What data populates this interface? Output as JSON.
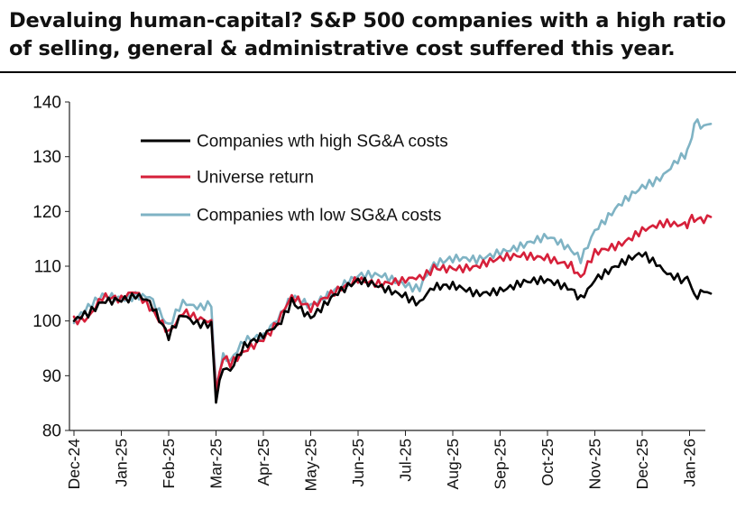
{
  "title_line1": "Devaluing human-capital? S&P 500 companies with a high ratio",
  "title_line2": "of selling, general & administrative cost suffered this year.",
  "chart_data": {
    "type": "line",
    "title": "Devaluing human-capital? S&P 500 companies with a high ratio of selling, general & administrative cost suffered this year.",
    "xlabel": "",
    "ylabel": "",
    "ylim": [
      80,
      140
    ],
    "yticks": [
      80,
      90,
      100,
      110,
      120,
      130,
      140
    ],
    "grid": false,
    "legend_position": "top-left",
    "x_tick_labels": [
      "Dec-24",
      "Jan-25",
      "Feb-25",
      "Mar-25",
      "Apr-25",
      "May-25",
      "Jun-25",
      "Jul-25",
      "Aug-25",
      "Sep-25",
      "Oct-25",
      "Nov-25",
      "Dec-25",
      "Jan-26"
    ],
    "x": [
      0,
      0.3,
      0.6,
      1.0,
      1.3,
      1.6,
      2.0,
      2.3,
      2.6,
      2.9,
      3.0,
      3.15,
      3.3,
      3.6,
      4.0,
      4.3,
      4.6,
      5.0,
      5.5,
      6.0,
      6.5,
      7.0,
      7.3,
      7.6,
      8.0,
      8.5,
      9.0,
      9.5,
      10.0,
      10.5,
      10.7,
      11.0,
      11.5,
      12.0,
      12.3,
      12.6,
      12.9,
      13.0,
      13.1,
      13.3,
      13.45
    ],
    "series": [
      {
        "name": "Companies wth high SG&A costs",
        "color": "#000000",
        "values": [
          100,
          101,
          104,
          104,
          105,
          103,
          97,
          101,
          100,
          99,
          86,
          92,
          91,
          95,
          97,
          99,
          104,
          101,
          105,
          107,
          106,
          105,
          103,
          106,
          106,
          105,
          106,
          107,
          107,
          106,
          104,
          108,
          110,
          112,
          111,
          108,
          107,
          108,
          104,
          105,
          105
        ]
      },
      {
        "name": "Universe return",
        "color": "#d6203a",
        "values": [
          100,
          101,
          104,
          104,
          105,
          103,
          98,
          102,
          100,
          100,
          87,
          93,
          92,
          95,
          97,
          100,
          104,
          102,
          105,
          108,
          107,
          107,
          108,
          110,
          110,
          110,
          111,
          112,
          112,
          110,
          108,
          112,
          114,
          117,
          117,
          118,
          118,
          118,
          119,
          119,
          119
        ]
      },
      {
        "name": "Companies wth low SG&A costs",
        "color": "#7fb3c4",
        "values": [
          100,
          102,
          105,
          104,
          105,
          104,
          99,
          103,
          103,
          103,
          88,
          94,
          93,
          96,
          97,
          100,
          105,
          103,
          106,
          108,
          108,
          107,
          106,
          110,
          111,
          111,
          113,
          114,
          115,
          113,
          111,
          117,
          121,
          124,
          126,
          128,
          130,
          132,
          136,
          135,
          136
        ]
      }
    ]
  }
}
